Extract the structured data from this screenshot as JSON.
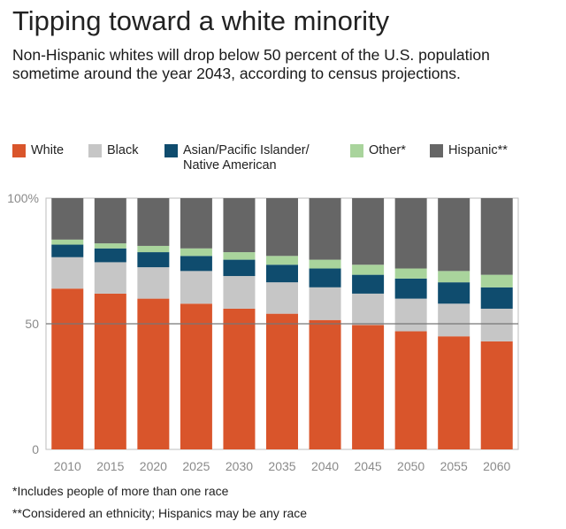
{
  "title": "Tipping toward a white minority",
  "subtitle": "Non-Hispanic whites will drop below 50 percent of the U.S. population sometime around the year 2043, according to census projections.",
  "legend": [
    {
      "label": "White",
      "color": "#d9552b"
    },
    {
      "label": "Black",
      "color": "#c6c6c6"
    },
    {
      "label": "Asian/Pacific Islander/\nNative American",
      "color": "#0f4c6e"
    },
    {
      "label": "Other*",
      "color": "#a9d49c"
    },
    {
      "label": "Hispanic**",
      "color": "#666666"
    }
  ],
  "chart_data": {
    "type": "bar",
    "stacked": true,
    "categories": [
      "2010",
      "2015",
      "2020",
      "2025",
      "2030",
      "2035",
      "2040",
      "2045",
      "2050",
      "2055",
      "2060"
    ],
    "series": [
      {
        "name": "White",
        "color": "#d9552b",
        "values": [
          64,
          62,
          60,
          58,
          56,
          54,
          51.5,
          49.5,
          47,
          45,
          43
        ]
      },
      {
        "name": "Black",
        "color": "#c6c6c6",
        "values": [
          12.5,
          12.5,
          12.5,
          13,
          13,
          12.5,
          13,
          12.5,
          13,
          13,
          13
        ]
      },
      {
        "name": "Asian/Pacific Islander/\nNative American",
        "color": "#0f4c6e",
        "values": [
          5,
          5.5,
          6,
          6,
          6.5,
          7,
          7.5,
          7.5,
          8,
          8.5,
          8.5
        ]
      },
      {
        "name": "Other*",
        "color": "#a9d49c",
        "values": [
          2,
          2,
          2.5,
          3,
          3,
          3.5,
          3.5,
          4,
          4,
          4.5,
          5
        ]
      },
      {
        "name": "Hispanic**",
        "color": "#666666",
        "values": [
          16.5,
          18,
          19,
          20,
          21.5,
          23,
          24.5,
          26.5,
          28,
          29,
          30.5
        ]
      }
    ],
    "ylim": [
      0,
      100
    ],
    "yticks": [
      "0",
      "50",
      "100%"
    ],
    "reference_line": 50
  },
  "footnotes": [
    "*Includes people of more than one race",
    "**Considered an ethnicity; Hispanics may be any race"
  ]
}
